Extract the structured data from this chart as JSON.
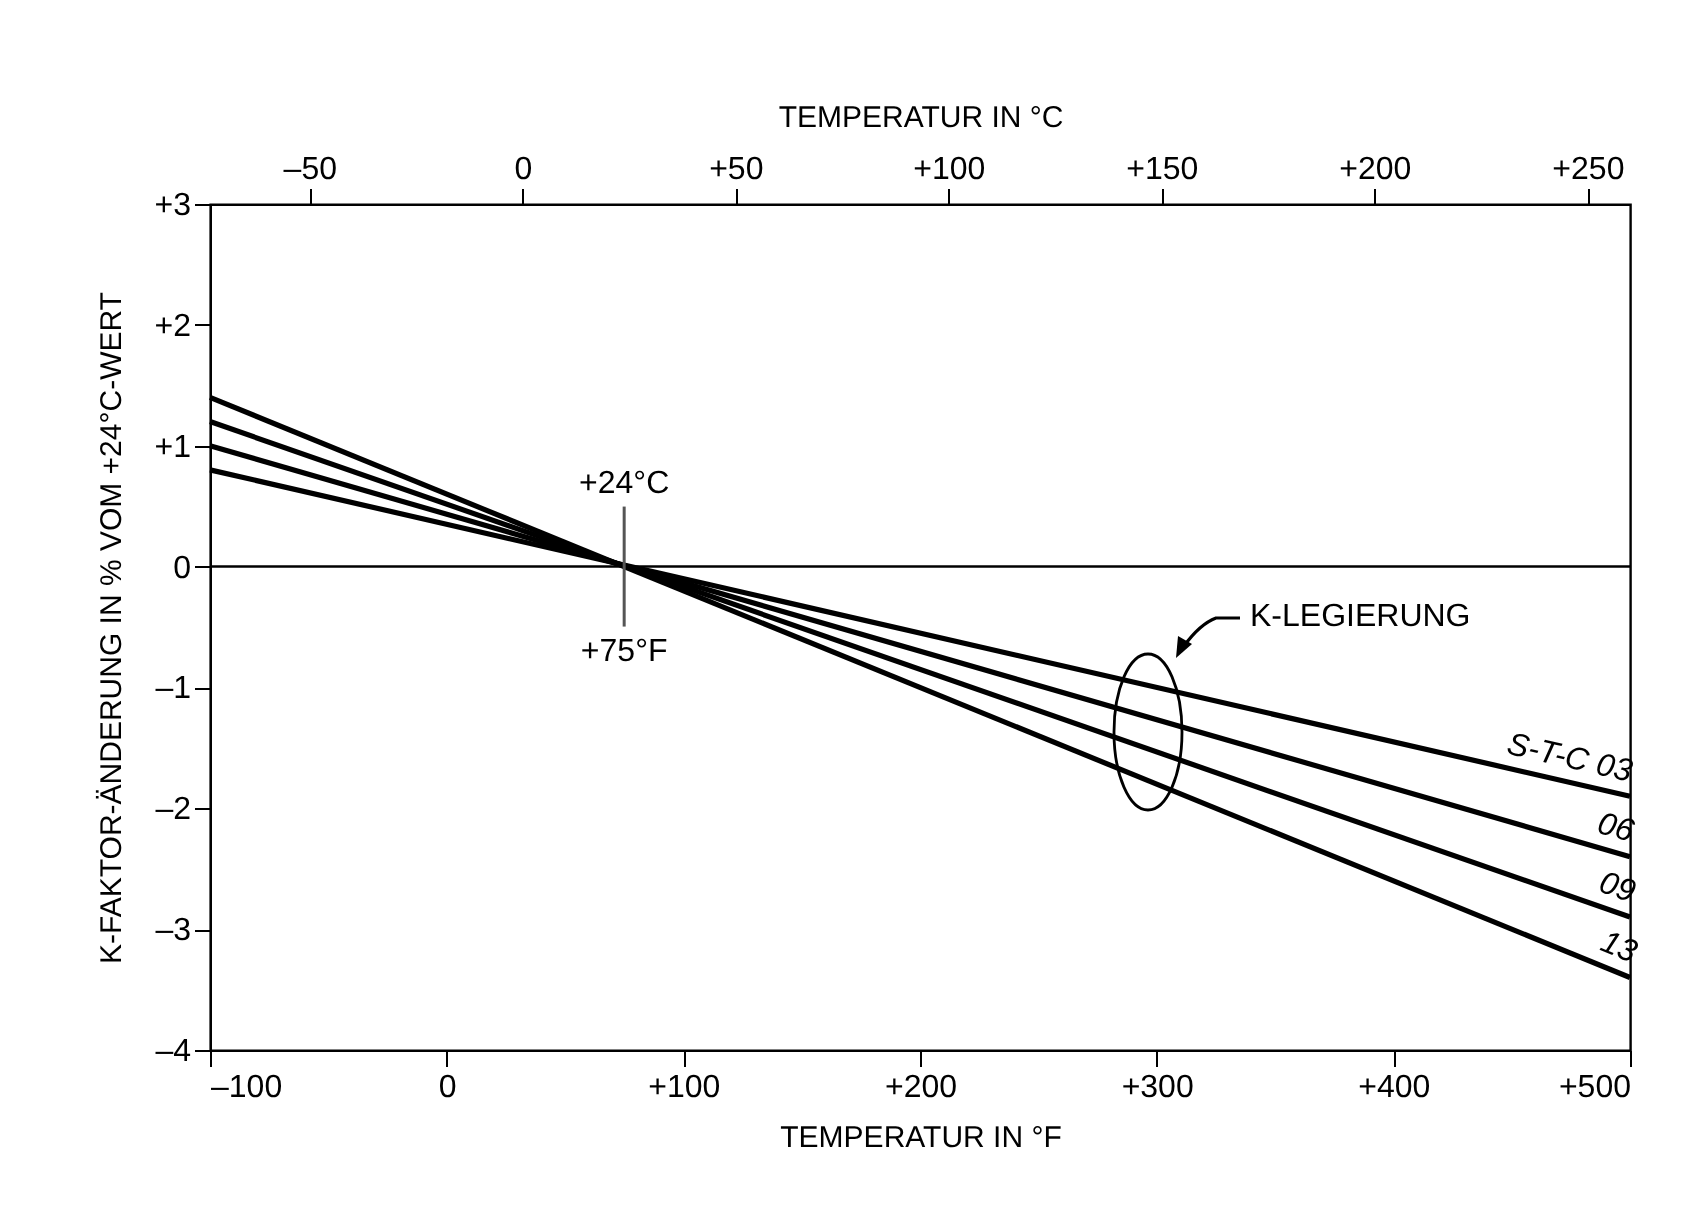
{
  "chart_data": {
    "type": "line",
    "xlabel": "TEMPERATUR IN °F",
    "x2label": "TEMPERATUR IN °C",
    "ylabel": "K-FAKTOR-ÄNDERUNG IN % VOM +24°C-WERT",
    "x": [
      -100,
      500
    ],
    "series": [
      {
        "name": "S-T-C 03",
        "color": "#000000",
        "values": [
          0.8,
          -1.9
        ]
      },
      {
        "name": "06",
        "color": "#000000",
        "values": [
          1.0,
          -2.4
        ]
      },
      {
        "name": "09",
        "color": "#000000",
        "values": [
          1.2,
          -2.9
        ]
      },
      {
        "name": "13",
        "color": "#000000",
        "values": [
          1.4,
          -3.4
        ]
      }
    ],
    "xlim": [
      -100,
      500
    ],
    "xticks": [
      {
        "value": -100,
        "label": "–100"
      },
      0,
      {
        "value": 100,
        "label": "+100"
      },
      {
        "value": 200,
        "label": "+200"
      },
      {
        "value": 300,
        "label": "+300"
      },
      {
        "value": 400,
        "label": "+400"
      },
      {
        "value": 500,
        "label": "+500"
      }
    ],
    "x2lim": [
      -73.3,
      260
    ],
    "x2ticks": [
      {
        "value": -50,
        "label": "–50"
      },
      0,
      {
        "value": 50,
        "label": "+50"
      },
      {
        "value": 100,
        "label": "+100"
      },
      {
        "value": 150,
        "label": "+150"
      },
      {
        "value": 200,
        "label": "+200"
      },
      {
        "value": 250,
        "label": "+250"
      }
    ],
    "ylim": [
      -4,
      3
    ],
    "yticks": [
      {
        "value": -4,
        "label": "–4"
      },
      {
        "value": -3,
        "label": "–3"
      },
      {
        "value": -2,
        "label": "–2"
      },
      {
        "value": -1,
        "label": "–1"
      },
      0,
      {
        "value": 1,
        "label": "+1"
      },
      {
        "value": 2,
        "label": "+2"
      },
      {
        "value": 3,
        "label": "+3"
      }
    ],
    "ref_lines": [
      {
        "axis": "y",
        "value": 0,
        "color": "#000000"
      }
    ],
    "annotations": [
      {
        "text": "+24°C",
        "x": 75,
        "y": 0
      },
      {
        "text": "+75°F",
        "x": 75,
        "y": 0
      },
      "K-LEGIERUNG"
    ],
    "grid": false,
    "legend": false,
    "marker": "none",
    "line_style": "solid"
  }
}
